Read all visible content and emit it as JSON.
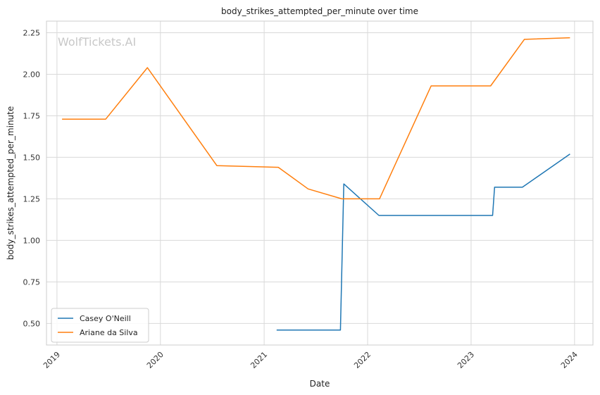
{
  "chart_data": {
    "type": "line",
    "title": "body_strikes_attempted_per_minute over time",
    "xlabel": "Date",
    "ylabel": "body_strikes_attempted_per_minute",
    "watermark": "WolfTickets.AI",
    "x_axis_type": "date",
    "xlim": [
      "2018-11-25",
      "2024-03-06"
    ],
    "ylim": [
      0.37,
      2.32
    ],
    "x_ticks": [
      "2019-01-01",
      "2020-01-01",
      "2021-01-01",
      "2022-01-01",
      "2023-01-01",
      "2024-01-01"
    ],
    "x_tick_labels": [
      "2019",
      "2020",
      "2021",
      "2022",
      "2023",
      "2024"
    ],
    "y_ticks": [
      0.5,
      0.75,
      1.0,
      1.25,
      1.5,
      1.75,
      2.0,
      2.25
    ],
    "y_tick_labels": [
      "0.50",
      "0.75",
      "1.00",
      "1.25",
      "1.50",
      "1.75",
      "2.00",
      "2.25"
    ],
    "grid": true,
    "legend_position": "lower-left",
    "series": [
      {
        "name": "Casey O'Neill",
        "color": "#1f77b4",
        "points": [
          {
            "x": "2021-02-14",
            "y": 0.46
          },
          {
            "x": "2021-09-27",
            "y": 0.46
          },
          {
            "x": "2021-10-09",
            "y": 1.34
          },
          {
            "x": "2022-02-10",
            "y": 1.15
          },
          {
            "x": "2023-03-18",
            "y": 1.15
          },
          {
            "x": "2023-03-25",
            "y": 1.32
          },
          {
            "x": "2023-07-01",
            "y": 1.32
          },
          {
            "x": "2023-12-16",
            "y": 1.52
          }
        ]
      },
      {
        "name": "Ariane da Silva",
        "color": "#ff7f0e",
        "points": [
          {
            "x": "2019-01-19",
            "y": 1.73
          },
          {
            "x": "2019-06-22",
            "y": 1.73
          },
          {
            "x": "2019-11-16",
            "y": 2.04
          },
          {
            "x": "2020-07-18",
            "y": 1.45
          },
          {
            "x": "2021-02-20",
            "y": 1.44
          },
          {
            "x": "2021-06-05",
            "y": 1.31
          },
          {
            "x": "2021-10-02",
            "y": 1.25
          },
          {
            "x": "2022-02-12",
            "y": 1.25
          },
          {
            "x": "2022-08-13",
            "y": 1.93
          },
          {
            "x": "2023-03-11",
            "y": 1.93
          },
          {
            "x": "2023-07-08",
            "y": 2.21
          },
          {
            "x": "2023-12-16",
            "y": 2.22
          }
        ]
      }
    ]
  }
}
